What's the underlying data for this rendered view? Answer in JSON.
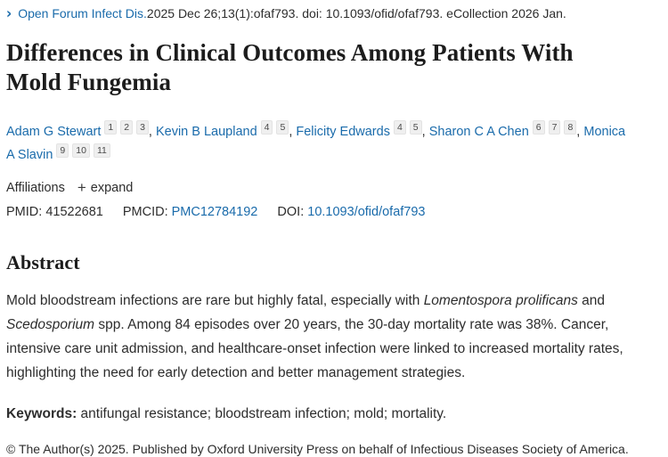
{
  "citation": {
    "journal": "Open Forum Infect Dis.",
    "details": " 2025 Dec 26;13(1):ofaf793. doi: 10.1093/ofid/ofaf793. eCollection 2026 Jan."
  },
  "title": "Differences in Clinical Outcomes Among Patients With Mold Fungemia",
  "authors": [
    {
      "name": "Adam G Stewart",
      "affiliations": [
        "1",
        "2",
        "3"
      ]
    },
    {
      "name": "Kevin B Laupland",
      "affiliations": [
        "4",
        "5"
      ]
    },
    {
      "name": "Felicity Edwards",
      "affiliations": [
        "4",
        "5"
      ]
    },
    {
      "name": "Sharon C A Chen",
      "affiliations": [
        "6",
        "7",
        "8"
      ]
    },
    {
      "name": "Monica A Slavin",
      "affiliations": [
        "9",
        "10",
        "11"
      ]
    }
  ],
  "author_separator": ", ",
  "affiliations_section": {
    "label": "Affiliations",
    "expand_icon": "+",
    "expand_label": "expand"
  },
  "identifiers": {
    "pmid_label": "PMID: ",
    "pmid_value": "41522681",
    "pmcid_label": "PMCID: ",
    "pmcid_value": "PMC12784192",
    "doi_label": "DOI: ",
    "doi_value": "10.1093/ofid/ofaf793"
  },
  "abstract": {
    "heading": "Abstract",
    "content": [
      {
        "text": "Mold bloodstream infections are rare but highly fatal, especially with "
      },
      {
        "text": "Lomentospora prolificans",
        "italic": true
      },
      {
        "text": " and "
      },
      {
        "text": "Scedosporium",
        "italic": true
      },
      {
        "text": " spp. Among 84 episodes over 20 years, the 30-day mortality rate was 38%. Cancer, intensive care unit admission, and healthcare-onset infection were linked to increased mortality rates, highlighting the need for early detection and better management strategies."
      }
    ]
  },
  "keywords": {
    "label": "Keywords:",
    "text": " antifungal resistance; bloodstream infection; mold; mortality."
  },
  "copyright": "© The Author(s) 2025. Published by Oxford University Press on behalf of Infectious Diseases Society of America.",
  "colors": {
    "link": "#1a6bab",
    "text": "#2d2d2d",
    "chip_background": "#efefef"
  }
}
